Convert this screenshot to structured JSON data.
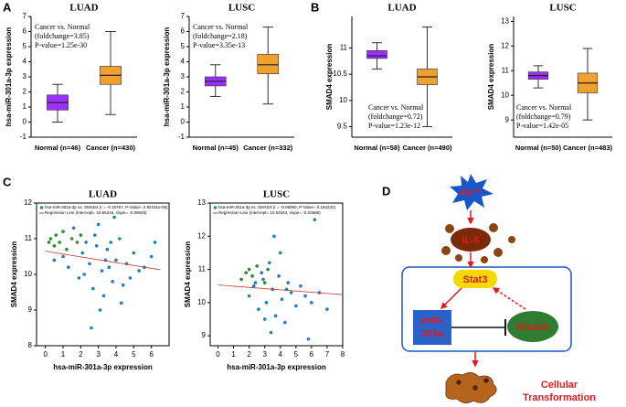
{
  "panel_labels": [
    "A",
    "B",
    "C",
    "D"
  ],
  "chart_data": [
    {
      "type": "box",
      "title": "LUAD",
      "ylabel": "hsa-miR-301a-3p expression",
      "categories": [
        "Normal (n=46)",
        "Cancer (n=430)"
      ],
      "boxes": [
        {
          "min": 0,
          "q1": 0.8,
          "median": 1.3,
          "q3": 1.8,
          "max": 2.5,
          "color": "#9b30ff"
        },
        {
          "min": 0.5,
          "q1": 2.5,
          "median": 3.1,
          "q3": 3.7,
          "max": 6,
          "color": "#f0a030"
        }
      ],
      "annotation": [
        "Cancer vs. Normal",
        "(foldchange=3.85)",
        "P-value=1.25e-30"
      ],
      "ylim": [
        -1,
        7
      ],
      "yticks": [
        -1,
        0,
        1,
        2,
        3,
        4,
        5,
        6,
        7
      ]
    },
    {
      "type": "box",
      "title": "LUSC",
      "ylabel": "hsa-miR-301a-3p expression",
      "categories": [
        "Normal (n=45)",
        "Cancer (n=332)"
      ],
      "boxes": [
        {
          "min": 1.7,
          "q1": 2.4,
          "median": 2.7,
          "q3": 3.0,
          "max": 3.8,
          "color": "#9b30ff"
        },
        {
          "min": 1.2,
          "q1": 3.2,
          "median": 3.8,
          "q3": 4.5,
          "max": 6.3,
          "color": "#f0a030"
        }
      ],
      "annotation": [
        "Cancer vs. Normal",
        "(foldchange=2.18)",
        "P-value=3.35e-13"
      ],
      "ylim": [
        -1,
        7
      ],
      "yticks": [
        -1,
        0,
        1,
        2,
        3,
        4,
        5,
        6,
        7
      ]
    },
    {
      "type": "box",
      "title": "LUAD",
      "ylabel": "SMAD4 expression",
      "categories": [
        "Normal (n=58)",
        "Cancer (n=490)"
      ],
      "boxes": [
        {
          "min": 10.6,
          "q1": 10.8,
          "median": 10.85,
          "q3": 10.95,
          "max": 11.1,
          "color": "#9b30ff"
        },
        {
          "min": 9.5,
          "q1": 10.3,
          "median": 10.45,
          "q3": 10.6,
          "max": 11.4,
          "color": "#f0a030"
        }
      ],
      "annotation": [
        "Cancer vs. Normal",
        "(foldchange=0.72)",
        "P-value=1.23e-12"
      ],
      "ylim": [
        9.3,
        11.6
      ],
      "yticks": [
        9.5,
        10,
        10.5,
        11
      ]
    },
    {
      "type": "box",
      "title": "LUSC",
      "ylabel": "SMAD4 expression",
      "categories": [
        "Normal (n=50)",
        "Cancer (n=483)"
      ],
      "boxes": [
        {
          "min": 10.3,
          "q1": 10.65,
          "median": 10.8,
          "q3": 10.95,
          "max": 11.2,
          "color": "#9b30ff"
        },
        {
          "min": 9.0,
          "q1": 10.1,
          "median": 10.5,
          "q3": 10.9,
          "max": 11.9,
          "color": "#f0a030"
        }
      ],
      "annotation": [
        "Cancer vs. Normal",
        "(foldchange=0.79)",
        "P-value=1.42e-05"
      ],
      "ylim": [
        8.3,
        13.2
      ],
      "yticks": [
        9,
        10,
        11,
        12,
        13
      ]
    },
    {
      "type": "scatter",
      "title": "LUAD",
      "xlabel": "hsa-miR-301a-3p expression",
      "ylabel": "SMAD4 expression",
      "series": [
        {
          "color": "#2e8b2e",
          "x": [
            0.2,
            0.3,
            0.5,
            0.6,
            0.8,
            1.0,
            1.2,
            1.5,
            1.8,
            2.0
          ],
          "values": [
            10.9,
            11.0,
            10.8,
            11.1,
            10.9,
            11.2,
            10.7,
            11.0,
            10.9,
            11.1
          ]
        },
        {
          "name": "hsa-miR-301a-3p vs. SMAD4 (r = -0.19767, P-Value= 2.82431e-05)",
          "color": "#1f7fc1",
          "x": [
            1.0,
            1.3,
            1.6,
            1.9,
            2.1,
            2.3,
            2.5,
            2.7,
            2.9,
            3.0,
            3.2,
            3.3,
            3.5,
            3.6,
            3.8,
            4.0,
            4.2,
            4.4,
            4.6,
            4.8,
            5.0,
            5.3,
            5.6,
            6.0,
            2.6,
            3.1,
            3.9,
            3.4,
            2.2,
            4.3,
            3.7,
            2.8,
            6.2,
            0.5
          ],
          "values": [
            10.5,
            10.2,
            11.3,
            9.9,
            10.6,
            10.9,
            10.3,
            9.6,
            10.8,
            11.4,
            10.1,
            9.4,
            10.7,
            10.2,
            9.8,
            10.4,
            11.0,
            9.7,
            10.3,
            9.9,
            10.6,
            10.1,
            10.2,
            10.5,
            8.5,
            9.0,
            11.6,
            10.4,
            10.0,
            9.2,
            10.9,
            11.1,
            10.9,
            10.4
          ]
        }
      ],
      "regression": {
        "name": "Regression Line (intercept= 10.65216, slope= -0.08026)",
        "color": "#c0392b",
        "x": [
          0,
          6.5
        ],
        "values": [
          10.65,
          10.13
        ]
      },
      "xlim": [
        -0.5,
        7
      ],
      "xticks": [
        0,
        1,
        2,
        3,
        4,
        5,
        6
      ],
      "ylim": [
        8,
        12
      ],
      "yticks": [
        8,
        9,
        10,
        11,
        12
      ]
    },
    {
      "type": "scatter",
      "title": "LUSC",
      "xlabel": "hsa-miR-301a-3p expression",
      "ylabel": "SMAD4 expression",
      "series": [
        {
          "color": "#2e8b2e",
          "x": [
            1.5,
            1.8,
            2.0,
            2.2,
            2.5,
            2.8,
            3.0,
            3.2
          ],
          "values": [
            10.7,
            10.9,
            11.0,
            10.8,
            11.1,
            10.9,
            10.6,
            11.0
          ]
        },
        {
          "name": "hsa-miR-301a-3p vs. SMAD4 (r = -0.06869, P-Value= 0.192232)",
          "color": "#1f7fc1",
          "x": [
            2.0,
            2.3,
            2.6,
            2.9,
            3.1,
            3.3,
            3.5,
            3.7,
            3.9,
            4.1,
            4.3,
            4.5,
            4.7,
            5.0,
            5.3,
            5.6,
            6.0,
            6.5,
            7.0,
            3.4,
            2.8,
            4.0,
            3.6,
            4.4,
            6.2,
            3.0,
            5.8,
            2.4
          ],
          "values": [
            10.2,
            10.5,
            9.8,
            10.7,
            10.0,
            11.2,
            10.4,
            9.6,
            10.8,
            10.1,
            9.4,
            10.6,
            10.3,
            9.9,
            10.5,
            10.2,
            10.0,
            10.3,
            9.8,
            9.1,
            10.9,
            11.5,
            12.0,
            10.4,
            12.5,
            9.5,
            8.9,
            10.6
          ]
        }
      ],
      "regression": {
        "name": "Regression Line (intercept= 10.53342, slope= -0.03589)",
        "color": "#c0392b",
        "x": [
          0,
          8
        ],
        "values": [
          10.53,
          10.24
        ]
      },
      "xlim": [
        -0.5,
        8
      ],
      "xticks": [
        0,
        1,
        2,
        3,
        4,
        5,
        6,
        7,
        8
      ],
      "ylim": [
        8.7,
        13
      ],
      "yticks": [
        9,
        10,
        11,
        12,
        13
      ]
    }
  ],
  "diagram": {
    "nodes": [
      "As³⁺",
      "IL-6",
      "Stat3",
      "miR-",
      "301a",
      "Smad4"
    ],
    "caption": [
      "Cellular",
      "Transformation"
    ]
  }
}
